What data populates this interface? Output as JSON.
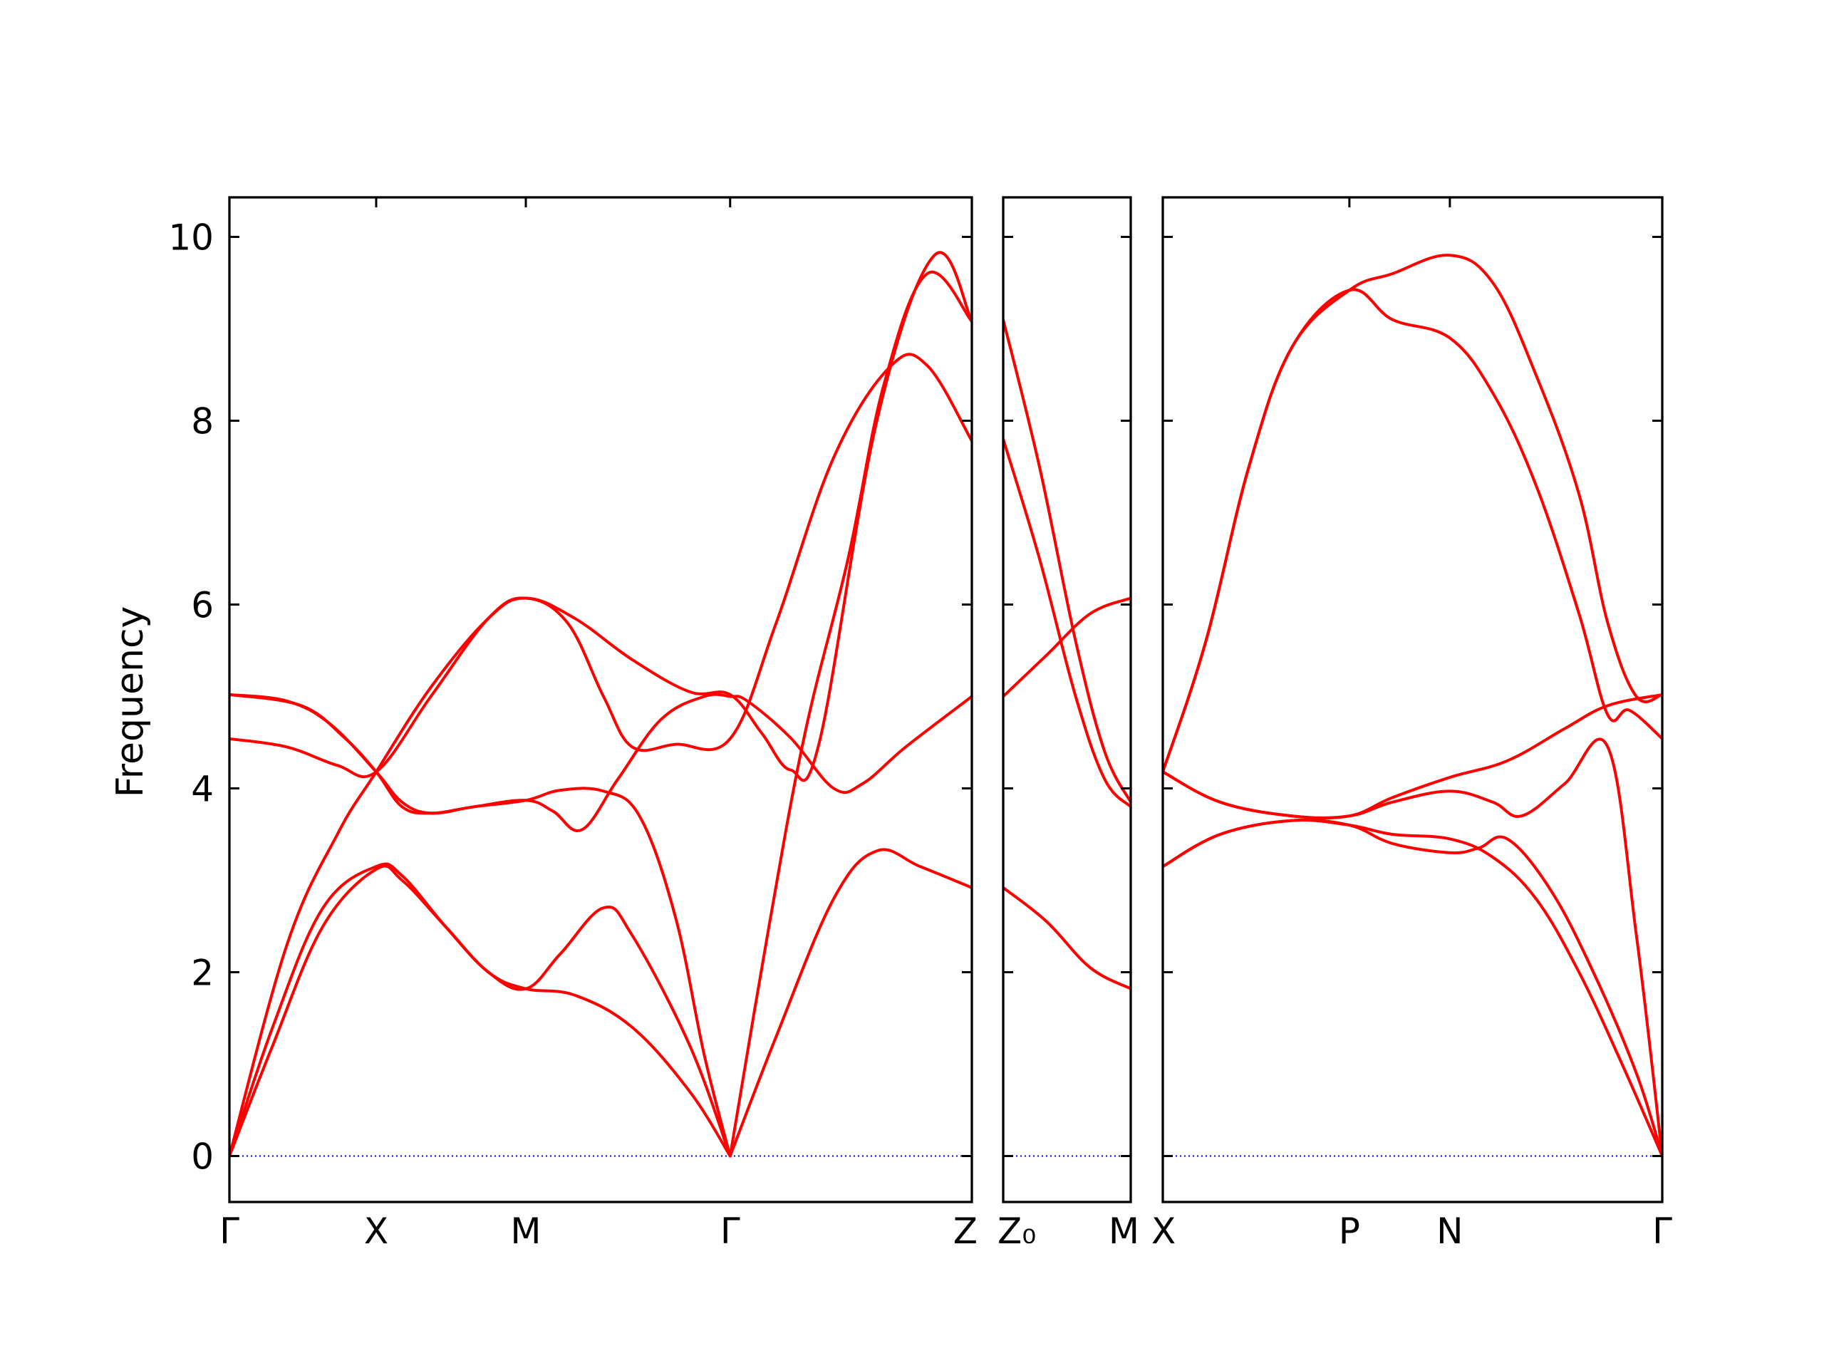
{
  "chart_data": {
    "type": "line",
    "ylabel": "Frequency",
    "ylim": [
      -0.5,
      10.43
    ],
    "yticks": [
      0,
      2,
      4,
      6,
      8,
      10
    ],
    "grid": false,
    "series_color": "#ff0000",
    "zero_line_color": "#0000ff",
    "panels": [
      {
        "xlim": [
          0,
          5.16
        ],
        "xticks": [
          {
            "pos": 0,
            "label": "Γ"
          },
          {
            "pos": 1.02,
            "label": "X"
          },
          {
            "pos": 2.06,
            "label": "M"
          },
          {
            "pos": 3.48,
            "label": "Γ"
          },
          {
            "pos": 5.16,
            "label": "Z"
          }
        ],
        "series": [
          {
            "values": [
              [
                0,
                5.02
              ],
              [
                0.4,
                4.95
              ],
              [
                0.7,
                4.7
              ],
              [
                1.02,
                4.18
              ],
              [
                1.2,
                3.85
              ],
              [
                1.4,
                3.73
              ],
              [
                1.7,
                3.8
              ],
              [
                2.06,
                3.87
              ],
              [
                2.3,
                3.98
              ],
              [
                2.6,
                3.97
              ],
              [
                2.85,
                3.7
              ],
              [
                3.1,
                2.6
              ],
              [
                3.3,
                1.1
              ],
              [
                3.48,
                0
              ]
            ]
          },
          {
            "values": [
              [
                0,
                5.02
              ],
              [
                0.5,
                4.9
              ],
              [
                0.8,
                4.55
              ],
              [
                1.02,
                4.18
              ],
              [
                1.2,
                3.8
              ],
              [
                1.4,
                3.73
              ],
              [
                1.7,
                3.8
              ],
              [
                2.06,
                3.87
              ],
              [
                2.25,
                3.75
              ],
              [
                2.45,
                3.55
              ],
              [
                2.7,
                4.1
              ],
              [
                3.0,
                4.75
              ],
              [
                3.3,
                5.0
              ],
              [
                3.48,
                5.0
              ],
              [
                3.6,
                4.95
              ],
              [
                3.9,
                4.55
              ],
              [
                4.2,
                4.0
              ],
              [
                4.4,
                4.05
              ],
              [
                4.7,
                4.45
              ],
              [
                5.16,
                5.0
              ]
            ]
          },
          {
            "values": [
              [
                0,
                4.54
              ],
              [
                0.4,
                4.45
              ],
              [
                0.75,
                4.25
              ],
              [
                1.02,
                4.18
              ],
              [
                1.4,
                5.0
              ],
              [
                1.8,
                5.85
              ],
              [
                2.06,
                6.07
              ],
              [
                2.35,
                5.8
              ],
              [
                2.6,
                5.0
              ],
              [
                2.8,
                4.45
              ],
              [
                3.1,
                4.48
              ],
              [
                3.48,
                4.54
              ],
              [
                3.8,
                5.8
              ],
              [
                4.2,
                7.6
              ],
              [
                4.6,
                8.6
              ],
              [
                4.85,
                8.6
              ],
              [
                5.16,
                7.78
              ]
            ]
          },
          {
            "values": [
              [
                0,
                0
              ],
              [
                0.3,
                1.4
              ],
              [
                0.65,
                2.7
              ],
              [
                1.02,
                3.15
              ],
              [
                1.2,
                3.05
              ],
              [
                1.5,
                2.5
              ],
              [
                1.8,
                2.0
              ],
              [
                2.06,
                1.82
              ],
              [
                2.3,
                2.2
              ],
              [
                2.6,
                2.7
              ],
              [
                2.8,
                2.4
              ],
              [
                3.2,
                1.2
              ],
              [
                3.48,
                0
              ]
            ]
          },
          {
            "values": [
              [
                0,
                0
              ],
              [
                0.3,
                1.2
              ],
              [
                0.65,
                2.5
              ],
              [
                1.02,
                3.12
              ],
              [
                1.2,
                3.0
              ],
              [
                1.5,
                2.5
              ],
              [
                1.8,
                2.0
              ],
              [
                2.06,
                1.82
              ],
              [
                2.4,
                1.75
              ],
              [
                2.8,
                1.4
              ],
              [
                3.2,
                0.7
              ],
              [
                3.48,
                0
              ]
            ]
          },
          {
            "values": [
              [
                0,
                0
              ],
              [
                0.4,
                2.3
              ],
              [
                0.75,
                3.5
              ],
              [
                1.02,
                4.18
              ],
              [
                1.4,
                5.1
              ],
              [
                1.8,
                5.85
              ],
              [
                2.06,
                6.07
              ],
              [
                2.4,
                5.85
              ],
              [
                2.8,
                5.4
              ],
              [
                3.2,
                5.05
              ],
              [
                3.48,
                5.02
              ],
              [
                3.7,
                4.6
              ],
              [
                3.9,
                4.2
              ],
              [
                4.1,
                4.5
              ],
              [
                4.5,
                8.0
              ],
              [
                4.9,
                9.8
              ],
              [
                5.16,
                9.08
              ]
            ]
          },
          {
            "values": [
              [
                3.48,
                0
              ],
              [
                3.8,
                1.3
              ],
              [
                4.2,
                2.8
              ],
              [
                4.5,
                3.32
              ],
              [
                4.8,
                3.15
              ],
              [
                5.16,
                2.92
              ]
            ]
          },
          {
            "values": [
              [
                3.48,
                0
              ],
              [
                3.75,
                2.5
              ],
              [
                4.0,
                4.6
              ],
              [
                4.3,
                6.5
              ],
              [
                4.55,
                8.4
              ],
              [
                4.85,
                9.6
              ],
              [
                5.16,
                9.08
              ]
            ]
          }
        ]
      },
      {
        "xlim": [
          0,
          0.88
        ],
        "xticks": [
          {
            "pos": 0,
            "label": "Z₀"
          },
          {
            "pos": 0.88,
            "label": "M"
          }
        ],
        "series": [
          {
            "values": [
              [
                0,
                9.1
              ],
              [
                0.25,
                7.5
              ],
              [
                0.5,
                5.6
              ],
              [
                0.7,
                4.4
              ],
              [
                0.88,
                3.85
              ]
            ]
          },
          {
            "values": [
              [
                0,
                7.8
              ],
              [
                0.25,
                6.5
              ],
              [
                0.5,
                5.0
              ],
              [
                0.7,
                4.1
              ],
              [
                0.88,
                3.8
              ]
            ]
          },
          {
            "values": [
              [
                0,
                5.0
              ],
              [
                0.3,
                5.45
              ],
              [
                0.6,
                5.9
              ],
              [
                0.88,
                6.07
              ]
            ]
          },
          {
            "values": [
              [
                0,
                2.92
              ],
              [
                0.3,
                2.55
              ],
              [
                0.6,
                2.05
              ],
              [
                0.88,
                1.82
              ]
            ]
          }
        ]
      },
      {
        "xlim": [
          0,
          3.48
        ],
        "xticks": [
          {
            "pos": 0,
            "label": "X"
          },
          {
            "pos": 1.3,
            "label": "P"
          },
          {
            "pos": 2.0,
            "label": "N"
          },
          {
            "pos": 3.48,
            "label": "Γ"
          }
        ],
        "series": [
          {
            "values": [
              [
                0,
                4.18
              ],
              [
                0.3,
                5.6
              ],
              [
                0.6,
                7.5
              ],
              [
                0.9,
                8.8
              ],
              [
                1.3,
                9.42
              ],
              [
                1.6,
                9.6
              ],
              [
                2.0,
                9.8
              ],
              [
                2.3,
                9.5
              ],
              [
                2.6,
                8.5
              ],
              [
                2.9,
                7.2
              ],
              [
                3.1,
                5.8
              ],
              [
                3.3,
                5.0
              ],
              [
                3.48,
                5.02
              ]
            ]
          },
          {
            "values": [
              [
                0,
                4.18
              ],
              [
                0.3,
                5.6
              ],
              [
                0.6,
                7.5
              ],
              [
                0.9,
                8.8
              ],
              [
                1.3,
                9.42
              ],
              [
                1.6,
                9.1
              ],
              [
                2.0,
                8.9
              ],
              [
                2.3,
                8.3
              ],
              [
                2.6,
                7.3
              ],
              [
                2.9,
                5.9
              ],
              [
                3.1,
                4.8
              ],
              [
                3.25,
                4.85
              ],
              [
                3.48,
                4.54
              ]
            ]
          },
          {
            "values": [
              [
                0,
                4.18
              ],
              [
                0.4,
                3.85
              ],
              [
                0.9,
                3.7
              ],
              [
                1.3,
                3.7
              ],
              [
                1.6,
                3.9
              ],
              [
                2.0,
                4.12
              ],
              [
                2.4,
                4.3
              ],
              [
                2.8,
                4.65
              ],
              [
                3.1,
                4.9
              ],
              [
                3.48,
                5.02
              ]
            ]
          },
          {
            "values": [
              [
                0,
                4.18
              ],
              [
                0.4,
                3.85
              ],
              [
                0.9,
                3.7
              ],
              [
                1.3,
                3.7
              ],
              [
                1.6,
                3.85
              ],
              [
                2.0,
                3.97
              ],
              [
                2.3,
                3.85
              ],
              [
                2.5,
                3.7
              ],
              [
                2.8,
                4.05
              ],
              [
                3.1,
                4.45
              ],
              [
                3.3,
                2.4
              ],
              [
                3.48,
                0
              ]
            ]
          },
          {
            "values": [
              [
                0,
                3.15
              ],
              [
                0.4,
                3.5
              ],
              [
                0.9,
                3.65
              ],
              [
                1.3,
                3.6
              ],
              [
                1.6,
                3.4
              ],
              [
                2.0,
                3.3
              ],
              [
                2.2,
                3.35
              ],
              [
                2.4,
                3.45
              ],
              [
                2.7,
                2.9
              ],
              [
                3.0,
                2.0
              ],
              [
                3.3,
                0.9
              ],
              [
                3.48,
                0
              ]
            ]
          },
          {
            "values": [
              [
                0,
                3.15
              ],
              [
                0.4,
                3.5
              ],
              [
                0.9,
                3.65
              ],
              [
                1.3,
                3.6
              ],
              [
                1.6,
                3.5
              ],
              [
                2.0,
                3.45
              ],
              [
                2.3,
                3.25
              ],
              [
                2.6,
                2.8
              ],
              [
                2.9,
                2.0
              ],
              [
                3.2,
                1.0
              ],
              [
                3.48,
                0
              ]
            ]
          }
        ]
      }
    ]
  }
}
